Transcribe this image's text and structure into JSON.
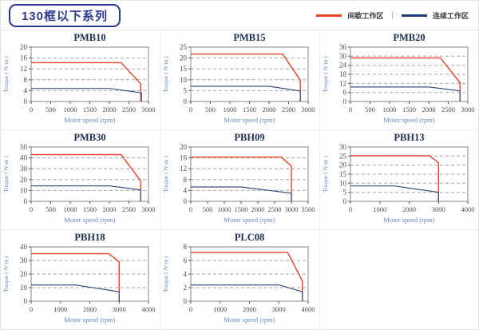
{
  "header": {
    "title": "130框以下系列"
  },
  "legend": {
    "intermittent_label": "间歇工作区",
    "continuous_label": "连续工作区",
    "separator": "|",
    "intermittent_color": "#e8432c",
    "continuous_color": "#1f3a7a"
  },
  "axis": {
    "xlabel": "Motor speed (rpm)",
    "ylabel": "Torque ( N·m )"
  },
  "chart_data": [
    {
      "type": "line",
      "title": "PMB10",
      "xlabel": "Motor speed (rpm)",
      "ylabel": "Torque ( N·m )",
      "xlim": [
        0,
        3000
      ],
      "xstep": 500,
      "ylim": [
        0,
        20
      ],
      "ystep": 4,
      "grid": true,
      "series": [
        {
          "name": "间歇工作区",
          "color": "#e8432c",
          "points": [
            [
              0,
              14.3
            ],
            [
              2300,
              14.3
            ],
            [
              2800,
              6.5
            ],
            [
              2800,
              0
            ]
          ]
        },
        {
          "name": "连续工作区",
          "color": "#3d5080",
          "points": [
            [
              0,
              4.8
            ],
            [
              2000,
              4.8
            ],
            [
              2820,
              3.2
            ],
            [
              2820,
              0
            ]
          ]
        }
      ]
    },
    {
      "type": "line",
      "title": "PMB15",
      "xlabel": "Motor speed (rpm)",
      "ylabel": "Torque ( N·m )",
      "xlim": [
        0,
        3000
      ],
      "xstep": 500,
      "ylim": [
        0,
        25
      ],
      "ystep": 5,
      "grid": true,
      "series": [
        {
          "name": "间歇工作区",
          "color": "#e8432c",
          "points": [
            [
              0,
              21.8
            ],
            [
              2350,
              21.8
            ],
            [
              2800,
              9.8
            ],
            [
              2800,
              0
            ]
          ]
        },
        {
          "name": "连续工作区",
          "color": "#3d5080",
          "points": [
            [
              0,
              7
            ],
            [
              2000,
              7
            ],
            [
              2800,
              4.8
            ],
            [
              2800,
              0
            ]
          ]
        }
      ]
    },
    {
      "type": "line",
      "title": "PMB20",
      "xlabel": "Motor speed (rpm)",
      "ylabel": "Torque ( N·m )",
      "xlim": [
        0,
        3000
      ],
      "xstep": 500,
      "ylim": [
        0,
        36
      ],
      "ystep": 6,
      "grid": true,
      "series": [
        {
          "name": "间歇工作区",
          "color": "#e8432c",
          "points": [
            [
              0,
              28.8
            ],
            [
              2300,
              28.8
            ],
            [
              2800,
              12.5
            ],
            [
              2800,
              0
            ]
          ]
        },
        {
          "name": "连续工作区",
          "color": "#3d5080",
          "points": [
            [
              0,
              9.6
            ],
            [
              2000,
              9.6
            ],
            [
              2800,
              7
            ],
            [
              2800,
              0
            ]
          ]
        }
      ]
    },
    {
      "type": "line",
      "title": "PMB30",
      "xlabel": "Motor speed (rpm)",
      "ylabel": "Torque ( N·m )",
      "xlim": [
        0,
        3000
      ],
      "xstep": 500,
      "ylim": [
        0,
        50
      ],
      "ystep": 10,
      "grid": true,
      "series": [
        {
          "name": "间歇工作区",
          "color": "#e8432c",
          "points": [
            [
              0,
              43
            ],
            [
              2300,
              43
            ],
            [
              2800,
              19
            ],
            [
              2800,
              0
            ]
          ]
        },
        {
          "name": "连续工作区",
          "color": "#3d5080",
          "points": [
            [
              0,
              14.3
            ],
            [
              2000,
              14.3
            ],
            [
              2800,
              10.5
            ],
            [
              2800,
              0
            ]
          ]
        }
      ]
    },
    {
      "type": "line",
      "title": "PBH09",
      "xlabel": "Motor speed (rpm)",
      "ylabel": "Torque ( N·m )",
      "xlim": [
        0,
        3500
      ],
      "xstep": 500,
      "ylim": [
        0,
        20
      ],
      "ystep": 4,
      "grid": true,
      "series": [
        {
          "name": "间歇工作区",
          "color": "#e8432c",
          "points": [
            [
              0,
              16.3
            ],
            [
              2700,
              16.3
            ],
            [
              3000,
              13
            ],
            [
              3000,
              0
            ]
          ]
        },
        {
          "name": "连续工作区",
          "color": "#3d5080",
          "points": [
            [
              0,
              5.3
            ],
            [
              1500,
              5.3
            ],
            [
              3000,
              3
            ],
            [
              3000,
              0
            ]
          ]
        }
      ]
    },
    {
      "type": "line",
      "title": "PBH13",
      "xlabel": "Motor speed (rpm)",
      "ylabel": "Torque ( N·m )",
      "xlim": [
        0,
        4000
      ],
      "xstep": 1000,
      "ylim": [
        0,
        30
      ],
      "ystep": 5,
      "grid": true,
      "series": [
        {
          "name": "间歇工作区",
          "color": "#e8432c",
          "points": [
            [
              0,
              25.2
            ],
            [
              2700,
              25.2
            ],
            [
              3000,
              21.3
            ],
            [
              3000,
              0
            ]
          ]
        },
        {
          "name": "连续工作区",
          "color": "#3d5080",
          "points": [
            [
              0,
              8.5
            ],
            [
              1500,
              8.5
            ],
            [
              3000,
              5
            ],
            [
              3000,
              0
            ]
          ]
        }
      ]
    },
    {
      "type": "line",
      "title": "PBH18",
      "xlabel": "Motor speed (rpm)",
      "ylabel": "Torque ( N·m )",
      "xlim": [
        0,
        4000
      ],
      "xstep": 1000,
      "ylim": [
        0,
        40
      ],
      "ystep": 10,
      "grid": true,
      "series": [
        {
          "name": "间歇工作区",
          "color": "#e8432c",
          "points": [
            [
              0,
              35
            ],
            [
              2650,
              35
            ],
            [
              3000,
              29
            ],
            [
              3000,
              0
            ]
          ]
        },
        {
          "name": "连续工作区",
          "color": "#3d5080",
          "points": [
            [
              0,
              12
            ],
            [
              1500,
              12
            ],
            [
              3000,
              7
            ],
            [
              3000,
              0
            ]
          ]
        }
      ]
    },
    {
      "type": "line",
      "title": "PLC08",
      "xlabel": "Motor speed (rpm)",
      "ylabel": "Torque ( N·m )",
      "xlim": [
        0,
        4000
      ],
      "xstep": 1000,
      "ylim": [
        0,
        8
      ],
      "ystep": 2,
      "grid": true,
      "series": [
        {
          "name": "间歇工作区",
          "color": "#e8432c",
          "points": [
            [
              0,
              7.2
            ],
            [
              3300,
              7.2
            ],
            [
              3800,
              3
            ],
            [
              3800,
              0
            ]
          ]
        },
        {
          "name": "连续工作区",
          "color": "#3d5080",
          "points": [
            [
              0,
              2.4
            ],
            [
              3000,
              2.4
            ],
            [
              3800,
              1.4
            ],
            [
              3800,
              0
            ]
          ]
        }
      ]
    }
  ]
}
